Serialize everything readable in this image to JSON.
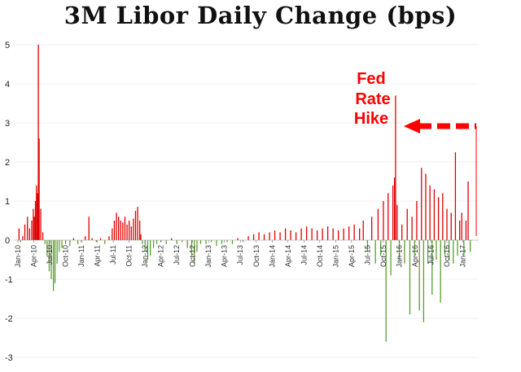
{
  "chart_data": {
    "type": "bar",
    "title": "3M Libor Daily Change (bps)",
    "xlabel": "",
    "ylabel": "",
    "ylim": [
      -3,
      5
    ],
    "yticks": [
      -3,
      -2,
      -1,
      0,
      1,
      2,
      3,
      4,
      5
    ],
    "x_range_months": [
      0,
      87
    ],
    "xtick_labels": [
      {
        "label": "Jan-10",
        "month": 0
      },
      {
        "label": "Apr-10",
        "month": 3
      },
      {
        "label": "Jul-10",
        "month": 6
      },
      {
        "label": "Oct-10",
        "month": 9
      },
      {
        "label": "Jan-11",
        "month": 12
      },
      {
        "label": "Apr-11",
        "month": 15
      },
      {
        "label": "Jul-11",
        "month": 18
      },
      {
        "label": "Oct-11",
        "month": 21
      },
      {
        "label": "Jan-12",
        "month": 24
      },
      {
        "label": "Apr-12",
        "month": 27
      },
      {
        "label": "Jul-12",
        "month": 30
      },
      {
        "label": "Oct-12",
        "month": 33
      },
      {
        "label": "Jan-13",
        "month": 36
      },
      {
        "label": "Apr-13",
        "month": 39
      },
      {
        "label": "Jul-13",
        "month": 42
      },
      {
        "label": "Oct-13",
        "month": 45
      },
      {
        "label": "Jan-14",
        "month": 48
      },
      {
        "label": "Apr-14",
        "month": 51
      },
      {
        "label": "Jul-14",
        "month": 54
      },
      {
        "label": "Oct-14",
        "month": 57
      },
      {
        "label": "Jan-15",
        "month": 60
      },
      {
        "label": "Apr-15",
        "month": 63
      },
      {
        "label": "Jul-15",
        "month": 66
      },
      {
        "label": "Oct-15",
        "month": 69
      },
      {
        "label": "Jan-16",
        "month": 72
      },
      {
        "label": "Apr-16",
        "month": 75
      },
      {
        "label": "Jul-16",
        "month": 78
      },
      {
        "label": "Oct-16",
        "month": 81
      },
      {
        "label": "Jan-17",
        "month": 84
      }
    ],
    "series": [
      {
        "name": "Daily change (bps)",
        "positive_color": "#e00000",
        "negative_color": "#5aa02c",
        "points": [
          [
            0.2,
            0.3
          ],
          [
            0.5,
            -0.05
          ],
          [
            0.9,
            0.1
          ],
          [
            1.3,
            0.4
          ],
          [
            1.8,
            0.6
          ],
          [
            2.2,
            0.3
          ],
          [
            2.6,
            0.5
          ],
          [
            2.9,
            0.8
          ],
          [
            3.1,
            0.6
          ],
          [
            3.3,
            1.0
          ],
          [
            3.5,
            1.4
          ],
          [
            3.7,
            1.2
          ],
          [
            3.85,
            5.0
          ],
          [
            4.0,
            2.6
          ],
          [
            4.3,
            0.8
          ],
          [
            4.7,
            0.2
          ],
          [
            5.1,
            -0.1
          ],
          [
            5.5,
            -0.4
          ],
          [
            5.9,
            -0.8
          ],
          [
            6.3,
            -1.0
          ],
          [
            6.7,
            -1.3
          ],
          [
            7.0,
            -1.1
          ],
          [
            7.4,
            -0.6
          ],
          [
            7.8,
            -0.3
          ],
          [
            8.3,
            -0.2
          ],
          [
            9.0,
            -0.1
          ],
          [
            9.8,
            -0.15
          ],
          [
            10.5,
            0.05
          ],
          [
            11.3,
            -0.1
          ],
          [
            12.0,
            -0.05
          ],
          [
            12.7,
            0.1
          ],
          [
            13.4,
            0.6
          ],
          [
            14.0,
            0.05
          ],
          [
            14.8,
            -0.05
          ],
          [
            15.6,
            0.05
          ],
          [
            16.4,
            -0.1
          ],
          [
            17.2,
            0.1
          ],
          [
            17.8,
            0.3
          ],
          [
            18.2,
            0.5
          ],
          [
            18.6,
            0.7
          ],
          [
            19.0,
            0.6
          ],
          [
            19.4,
            0.5
          ],
          [
            19.8,
            0.45
          ],
          [
            20.2,
            0.6
          ],
          [
            20.6,
            0.4
          ],
          [
            21.0,
            0.5
          ],
          [
            21.4,
            0.35
          ],
          [
            21.8,
            0.55
          ],
          [
            22.2,
            0.75
          ],
          [
            22.6,
            0.85
          ],
          [
            23.0,
            0.5
          ],
          [
            23.2,
            0.15
          ],
          [
            23.5,
            -0.1
          ],
          [
            24.0,
            -0.3
          ],
          [
            24.5,
            -0.5
          ],
          [
            25.0,
            -0.4
          ],
          [
            25.6,
            -0.2
          ],
          [
            26.2,
            -0.1
          ],
          [
            27.0,
            -0.05
          ],
          [
            28.0,
            -0.1
          ],
          [
            29.0,
            0.05
          ],
          [
            30.0,
            -0.1
          ],
          [
            31.0,
            -0.05
          ],
          [
            32.0,
            -0.2
          ],
          [
            32.8,
            -0.4
          ],
          [
            33.3,
            -0.6
          ],
          [
            33.8,
            -0.3
          ],
          [
            34.5,
            -0.1
          ],
          [
            35.5,
            -0.1
          ],
          [
            36.5,
            -0.05
          ],
          [
            37.5,
            -0.15
          ],
          [
            38.5,
            -0.1
          ],
          [
            39.5,
            -0.05
          ],
          [
            40.5,
            -0.1
          ],
          [
            41.5,
            0.05
          ],
          [
            42.5,
            -0.05
          ],
          [
            43.5,
            0.1
          ],
          [
            44.5,
            0.15
          ],
          [
            45.5,
            0.2
          ],
          [
            46.5,
            0.15
          ],
          [
            47.5,
            0.2
          ],
          [
            48.5,
            0.25
          ],
          [
            49.5,
            0.2
          ],
          [
            50.5,
            0.3
          ],
          [
            51.5,
            0.25
          ],
          [
            52.5,
            0.2
          ],
          [
            53.5,
            0.3
          ],
          [
            54.5,
            0.35
          ],
          [
            55.5,
            0.3
          ],
          [
            56.5,
            0.25
          ],
          [
            57.5,
            0.3
          ],
          [
            58.5,
            0.35
          ],
          [
            59.5,
            0.3
          ],
          [
            60.5,
            0.25
          ],
          [
            61.5,
            0.3
          ],
          [
            62.5,
            0.35
          ],
          [
            63.5,
            0.4
          ],
          [
            64.5,
            0.3
          ],
          [
            65.2,
            0.5
          ],
          [
            66.0,
            -0.3
          ],
          [
            66.8,
            0.6
          ],
          [
            67.5,
            -0.6
          ],
          [
            68.0,
            0.8
          ],
          [
            68.5,
            -0.4
          ],
          [
            69.0,
            1.0
          ],
          [
            69.5,
            -2.6
          ],
          [
            69.9,
            1.2
          ],
          [
            70.4,
            -0.9
          ],
          [
            70.8,
            1.4
          ],
          [
            71.1,
            1.6
          ],
          [
            71.3,
            3.7
          ],
          [
            71.6,
            0.9
          ],
          [
            72.0,
            -0.5
          ],
          [
            72.5,
            0.4
          ],
          [
            73.0,
            -0.6
          ],
          [
            73.5,
            0.8
          ],
          [
            74.0,
            -1.9
          ],
          [
            74.4,
            0.6
          ],
          [
            74.9,
            -0.4
          ],
          [
            75.3,
            1.0
          ],
          [
            75.8,
            -1.8
          ],
          [
            76.2,
            1.85
          ],
          [
            76.6,
            -2.1
          ],
          [
            77.0,
            1.7
          ],
          [
            77.4,
            -0.6
          ],
          [
            77.8,
            1.4
          ],
          [
            78.2,
            -1.4
          ],
          [
            78.6,
            1.3
          ],
          [
            79.0,
            -0.5
          ],
          [
            79.4,
            1.1
          ],
          [
            79.8,
            -1.6
          ],
          [
            80.2,
            1.2
          ],
          [
            80.6,
            -0.4
          ],
          [
            81.0,
            0.8
          ],
          [
            81.4,
            -0.5
          ],
          [
            81.8,
            0.7
          ],
          [
            82.2,
            -0.6
          ],
          [
            82.6,
            2.25
          ],
          [
            83.0,
            -0.4
          ],
          [
            83.4,
            0.5
          ],
          [
            83.8,
            0.7
          ],
          [
            84.2,
            -0.4
          ],
          [
            84.6,
            0.5
          ],
          [
            85.0,
            1.5
          ],
          [
            85.4,
            -0.3
          ]
        ]
      }
    ],
    "annotations": [
      {
        "text": "Fed",
        "color": "#ff0000"
      },
      {
        "text": "Rate",
        "color": "#ff0000"
      },
      {
        "text": "Hike",
        "color": "#ff0000"
      }
    ]
  }
}
